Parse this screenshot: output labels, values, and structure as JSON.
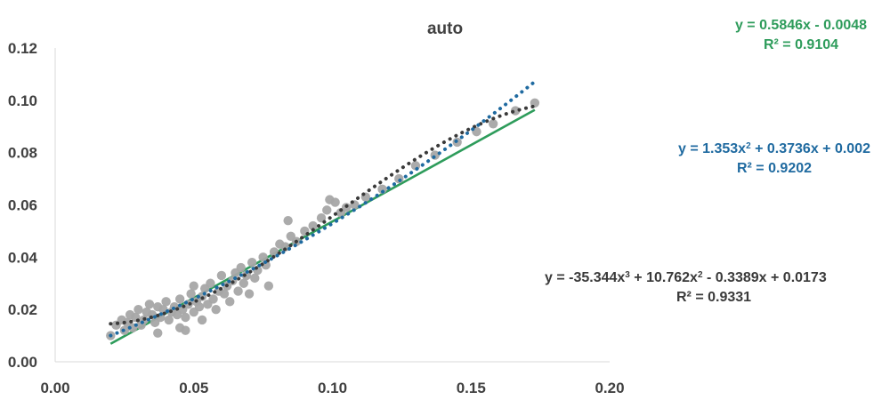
{
  "chart_data": {
    "type": "scatter",
    "title": "auto",
    "xlabel": "",
    "ylabel": "",
    "xlim": [
      0.0,
      0.2
    ],
    "ylim": [
      0.0,
      0.12
    ],
    "x_ticks": [
      "0.00",
      "0.05",
      "0.10",
      "0.15",
      "0.20"
    ],
    "y_ticks": [
      "0.00",
      "0.02",
      "0.04",
      "0.06",
      "0.08",
      "0.10",
      "0.12"
    ],
    "grid": false,
    "legend": "none",
    "series": [
      {
        "kind": "scatter",
        "color": "#a6a6a6",
        "points": [
          [
            0.02,
            0.01
          ],
          [
            0.022,
            0.014
          ],
          [
            0.024,
            0.016
          ],
          [
            0.025,
            0.012
          ],
          [
            0.026,
            0.015
          ],
          [
            0.027,
            0.018
          ],
          [
            0.028,
            0.013
          ],
          [
            0.029,
            0.017
          ],
          [
            0.03,
            0.02
          ],
          [
            0.031,
            0.014
          ],
          [
            0.032,
            0.016
          ],
          [
            0.033,
            0.019
          ],
          [
            0.034,
            0.022
          ],
          [
            0.035,
            0.018
          ],
          [
            0.036,
            0.015
          ],
          [
            0.037,
            0.011
          ],
          [
            0.037,
            0.021
          ],
          [
            0.038,
            0.017
          ],
          [
            0.039,
            0.02
          ],
          [
            0.04,
            0.023
          ],
          [
            0.041,
            0.016
          ],
          [
            0.042,
            0.019
          ],
          [
            0.043,
            0.021
          ],
          [
            0.044,
            0.018
          ],
          [
            0.045,
            0.024
          ],
          [
            0.045,
            0.013
          ],
          [
            0.046,
            0.02
          ],
          [
            0.047,
            0.017
          ],
          [
            0.047,
            0.012
          ],
          [
            0.048,
            0.022
          ],
          [
            0.049,
            0.026
          ],
          [
            0.05,
            0.019
          ],
          [
            0.05,
            0.029
          ],
          [
            0.051,
            0.023
          ],
          [
            0.052,
            0.021
          ],
          [
            0.053,
            0.025
          ],
          [
            0.053,
            0.016
          ],
          [
            0.054,
            0.028
          ],
          [
            0.055,
            0.022
          ],
          [
            0.056,
            0.03
          ],
          [
            0.057,
            0.024
          ],
          [
            0.058,
            0.02
          ],
          [
            0.059,
            0.027
          ],
          [
            0.06,
            0.033
          ],
          [
            0.061,
            0.026
          ],
          [
            0.062,
            0.029
          ],
          [
            0.063,
            0.023
          ],
          [
            0.064,
            0.031
          ],
          [
            0.065,
            0.034
          ],
          [
            0.066,
            0.027
          ],
          [
            0.067,
            0.036
          ],
          [
            0.068,
            0.03
          ],
          [
            0.069,
            0.033
          ],
          [
            0.07,
            0.026
          ],
          [
            0.071,
            0.038
          ],
          [
            0.072,
            0.032
          ],
          [
            0.073,
            0.035
          ],
          [
            0.075,
            0.04
          ],
          [
            0.076,
            0.037
          ],
          [
            0.077,
            0.029
          ],
          [
            0.079,
            0.042
          ],
          [
            0.081,
            0.045
          ],
          [
            0.083,
            0.044
          ],
          [
            0.084,
            0.054
          ],
          [
            0.085,
            0.048
          ],
          [
            0.087,
            0.046
          ],
          [
            0.09,
            0.05
          ],
          [
            0.093,
            0.052
          ],
          [
            0.096,
            0.055
          ],
          [
            0.098,
            0.058
          ],
          [
            0.099,
            0.062
          ],
          [
            0.101,
            0.061
          ],
          [
            0.103,
            0.057
          ],
          [
            0.105,
            0.059
          ],
          [
            0.108,
            0.06
          ],
          [
            0.112,
            0.063
          ],
          [
            0.118,
            0.066
          ],
          [
            0.124,
            0.07
          ],
          [
            0.13,
            0.075
          ],
          [
            0.137,
            0.079
          ],
          [
            0.145,
            0.084
          ],
          [
            0.152,
            0.088
          ],
          [
            0.158,
            0.091
          ],
          [
            0.166,
            0.096
          ],
          [
            0.173,
            0.099
          ]
        ]
      },
      {
        "kind": "linear-trendline",
        "color": "#2e9c5b",
        "coefficients": [
          0.5846,
          -0.0048
        ],
        "x_range": [
          0.02,
          0.173
        ],
        "equation": "y = 0.5846x - 0.0048",
        "r2": "R² = 0.9104"
      },
      {
        "kind": "poly2-trendline",
        "color": "#1f6aa0",
        "coefficients": [
          1.353,
          0.3736,
          0.002
        ],
        "x_range": [
          0.02,
          0.173
        ],
        "equation": "y = 1.353x² + 0.3736x + 0.002",
        "r2": "R² = 0.9202"
      },
      {
        "kind": "poly3-trendline",
        "color": "#3a3a3a",
        "coefficients": [
          -35.344,
          10.762,
          -0.3389,
          0.0173
        ],
        "x_range": [
          0.02,
          0.173
        ],
        "equation": "y = -35.344x³ + 10.762x² - 0.3389x + 0.0173",
        "r2": "R² = 0.9331"
      }
    ]
  },
  "equations": {
    "linear": {
      "eq_pre": "y = 0.5846x - 0.0048",
      "r2": "R² = 0.9104"
    },
    "poly2": {
      "eq_a": "y = 1.353x",
      "eq_b": " + 0.3736x + 0.002",
      "r2": "R² = 0.9202"
    },
    "poly3": {
      "eq_a": "y = -35.344x",
      "eq_b": " + 10.762x",
      "eq_c": " - 0.3389x + 0.0173",
      "r2": "R² = 0.9331"
    },
    "sup2": "2",
    "sup3": "3"
  }
}
